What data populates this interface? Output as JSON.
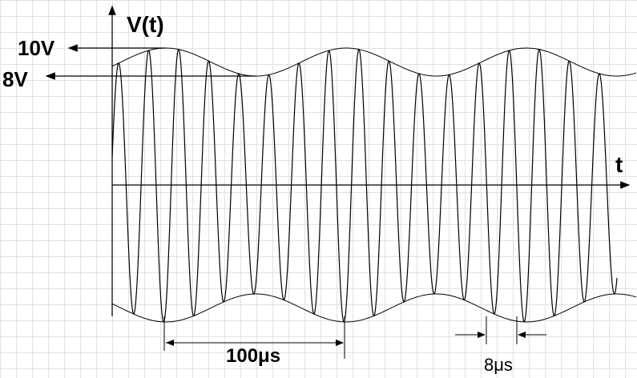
{
  "axes": {
    "y_label": "V(t)",
    "x_label": "t"
  },
  "annotations": {
    "max_amplitude": "10V",
    "min_amplitude": "8V",
    "modulation_period": "100μs",
    "carrier_period": "8μs"
  }
}
